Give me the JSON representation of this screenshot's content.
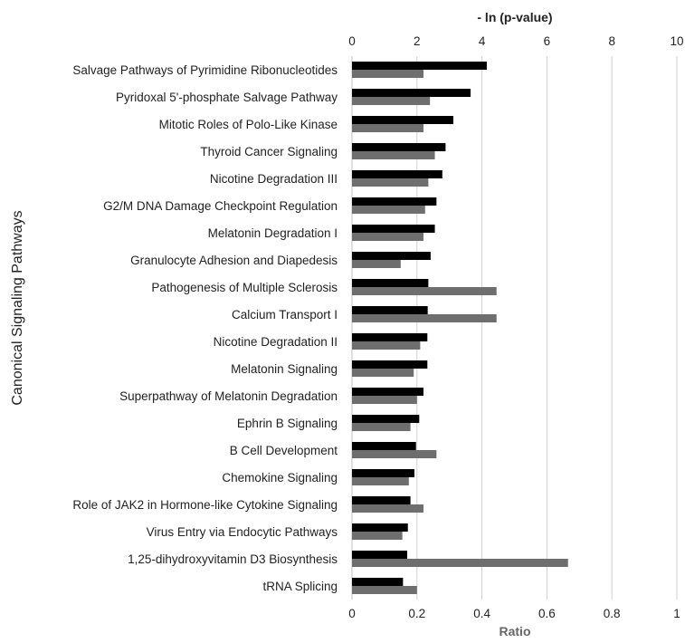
{
  "chart_data": {
    "type": "bar",
    "orientation": "horizontal",
    "ylabel": "Canonical Signaling Pathways",
    "x_top": {
      "label": "- ln (p-value)",
      "ticks": [
        "0",
        "2",
        "4",
        "6",
        "8",
        "10"
      ],
      "range": [
        0,
        10
      ]
    },
    "x_bottom": {
      "label": "Ratio",
      "ticks": [
        "0",
        "0.2",
        "0.4",
        "0.6",
        "0.8",
        "1"
      ],
      "range": [
        0,
        1
      ]
    },
    "grid": "vertical",
    "categories": [
      "Salvage Pathways of Pyrimidine Ribonucleotides",
      "Pyridoxal 5'-phosphate Salvage Pathway",
      "Mitotic Roles of Polo-Like Kinase",
      "Thyroid Cancer Signaling",
      "Nicotine Degradation III",
      "G2/M DNA Damage Checkpoint Regulation",
      "Melatonin Degradation I",
      "Granulocyte Adhesion and Diapedesis",
      "Pathogenesis of Multiple Sclerosis",
      "Calcium Transport I",
      "Nicotine Degradation II",
      "Melatonin Signaling",
      "Superpathway of Melatonin Degradation",
      "Ephrin B Signaling",
      "B Cell Development",
      "Chemokine Signaling",
      "Role of JAK2 in Hormone-like Cytokine Signaling",
      "Virus Entry via Endocytic Pathways",
      "1,25-dihydroxyvitamin D3 Biosynthesis",
      "tRNA Splicing"
    ],
    "series": [
      {
        "axis": "top",
        "color": "#000000",
        "values": [
          4.15,
          3.65,
          3.12,
          2.88,
          2.78,
          2.6,
          2.55,
          2.42,
          2.35,
          2.33,
          2.32,
          2.32,
          2.2,
          2.07,
          1.97,
          1.92,
          1.8,
          1.72,
          1.7,
          1.57
        ]
      },
      {
        "axis": "bottom",
        "color": "#6e6e6e",
        "values": [
          0.22,
          0.24,
          0.22,
          0.255,
          0.235,
          0.225,
          0.22,
          0.15,
          0.445,
          0.445,
          0.21,
          0.19,
          0.2,
          0.18,
          0.26,
          0.175,
          0.22,
          0.155,
          0.665,
          0.2
        ]
      }
    ]
  }
}
